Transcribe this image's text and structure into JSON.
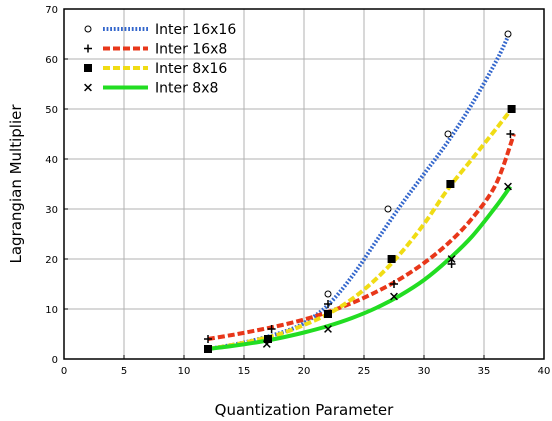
{
  "chart_data": {
    "type": "scatter",
    "xlabel": "Quantization Parameter",
    "ylabel": "Lagrangian Multiplier",
    "xlim": [
      0,
      40
    ],
    "ylim": [
      0,
      70
    ],
    "xticks": [
      0,
      5,
      10,
      15,
      20,
      25,
      30,
      35,
      40
    ],
    "yticks": [
      0,
      10,
      20,
      30,
      40,
      50,
      60,
      70
    ],
    "grid": true,
    "legend_position": "top-left",
    "series": [
      {
        "name": "Inter 16x16",
        "marker": "circle",
        "line_color": "#3366cc",
        "line_style": "dotted",
        "points": [
          [
            12,
            2
          ],
          [
            17,
            4
          ],
          [
            22,
            13
          ],
          [
            27,
            30
          ],
          [
            32,
            45
          ],
          [
            37,
            65
          ]
        ],
        "curve": [
          [
            12,
            2
          ],
          [
            15,
            3.3
          ],
          [
            18,
            5.2
          ],
          [
            20,
            7.2
          ],
          [
            22,
            10.8
          ],
          [
            24,
            16.5
          ],
          [
            26,
            23.5
          ],
          [
            28,
            30.5
          ],
          [
            30,
            37
          ],
          [
            32,
            43.5
          ],
          [
            34,
            51
          ],
          [
            36,
            59.5
          ],
          [
            37,
            64.5
          ]
        ]
      },
      {
        "name": "Inter 16x8",
        "marker": "plus",
        "line_color": "#e8371a",
        "line_style": "dashed",
        "points": [
          [
            12,
            4
          ],
          [
            17.3,
            6
          ],
          [
            22,
            11
          ],
          [
            27.5,
            15
          ],
          [
            32.3,
            19
          ],
          [
            37.2,
            45
          ]
        ],
        "curve": [
          [
            12,
            4
          ],
          [
            14,
            4.8
          ],
          [
            16,
            5.7
          ],
          [
            18,
            6.7
          ],
          [
            20,
            7.9
          ],
          [
            22,
            9.4
          ],
          [
            24,
            11.2
          ],
          [
            26,
            13.4
          ],
          [
            28,
            16
          ],
          [
            30,
            19.2
          ],
          [
            32,
            23.1
          ],
          [
            34,
            28.1
          ],
          [
            36,
            35
          ],
          [
            37.5,
            45
          ]
        ]
      },
      {
        "name": "Inter 8x16",
        "marker": "square",
        "line_color": "#f0dc14",
        "line_style": "dashed",
        "points": [
          [
            12,
            2
          ],
          [
            17,
            4
          ],
          [
            22,
            9
          ],
          [
            27.3,
            20
          ],
          [
            32.2,
            35
          ],
          [
            37.3,
            50
          ]
        ],
        "curve": [
          [
            12,
            2
          ],
          [
            14,
            2.8
          ],
          [
            16,
            3.8
          ],
          [
            18,
            5
          ],
          [
            20,
            6.8
          ],
          [
            22,
            9
          ],
          [
            24,
            12
          ],
          [
            26,
            16
          ],
          [
            28,
            21
          ],
          [
            30,
            27
          ],
          [
            32,
            34
          ],
          [
            34,
            40
          ],
          [
            36,
            46
          ],
          [
            37.3,
            50
          ]
        ]
      },
      {
        "name": "Inter 8x8",
        "marker": "x",
        "line_color": "#22dd22",
        "line_style": "solid",
        "points": [
          [
            12,
            2
          ],
          [
            16.9,
            3
          ],
          [
            22,
            6
          ],
          [
            27.5,
            12.5
          ],
          [
            32.3,
            20
          ],
          [
            37,
            34.5
          ]
        ],
        "curve": [
          [
            12,
            2
          ],
          [
            14,
            2.6
          ],
          [
            16,
            3.3
          ],
          [
            18,
            4.2
          ],
          [
            20,
            5.3
          ],
          [
            22,
            6.6
          ],
          [
            24,
            8.2
          ],
          [
            26,
            10.2
          ],
          [
            28,
            12.7
          ],
          [
            30,
            15.8
          ],
          [
            32,
            19.8
          ],
          [
            34,
            24.5
          ],
          [
            36,
            30.5
          ],
          [
            37.2,
            34.5
          ]
        ]
      }
    ]
  }
}
